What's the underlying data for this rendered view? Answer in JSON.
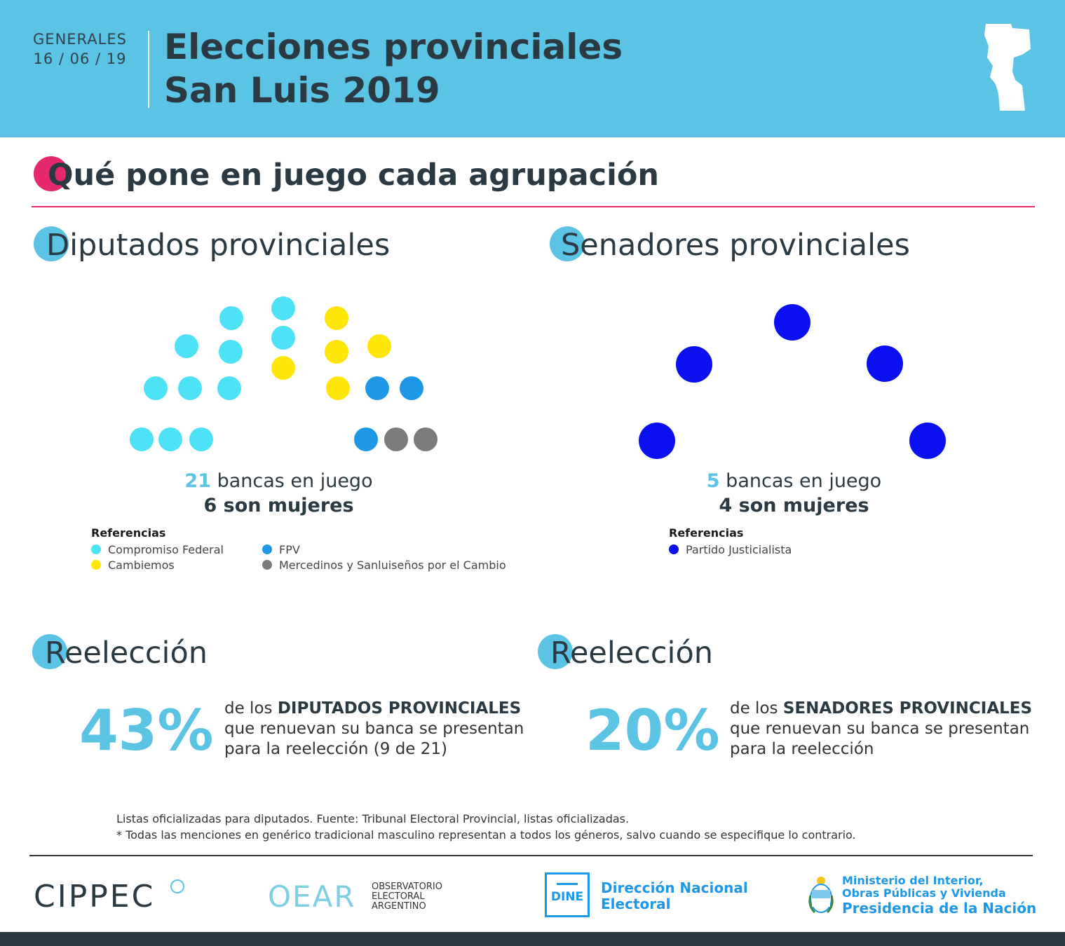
{
  "header": {
    "label": "GENERALES",
    "date": "16 / 06 / 19",
    "title_line1": "Elecciones provinciales",
    "title_line2": "San Luis 2019"
  },
  "main_title": "Qué pone en juego cada agrupación",
  "diputados": {
    "title": "Diputados provinciales",
    "seats": 21,
    "count_num": "21",
    "count_text": " bancas en juego",
    "women": "6 son mujeres",
    "ref_title": "Referencias",
    "legend": [
      {
        "label": "Compromiso Federal",
        "color": "#4ee2f7",
        "seats": 11
      },
      {
        "label": "Cambiemos",
        "color": "#ffe60a",
        "seats": 5
      },
      {
        "label": "FPV",
        "color": "#1e98e6",
        "seats": 3
      },
      {
        "label": "Mercedinos y Sanluiseños por el Cambio",
        "color": "#7b7b7d",
        "seats": 2
      }
    ]
  },
  "senadores": {
    "title": "Senadores provinciales",
    "seats": 5,
    "count_num": "5",
    "count_text": " bancas en juego",
    "women": "4 son mujeres",
    "ref_title": "Referencias",
    "legend": [
      {
        "label": "Partido Justicialista",
        "color": "#0b10f0",
        "seats": 5
      }
    ]
  },
  "reeleccion_diputados": {
    "title": "Reelección",
    "pct": "43%",
    "text_pre": "de los ",
    "text_bold": "DIPUTADOS PROVINCIALES",
    "text_line2": "que renuevan su banca se presentan",
    "text_line3": "para la reelección (9 de 21)"
  },
  "reeleccion_senadores": {
    "title": "Reelección",
    "pct": "20%",
    "text_pre": "de los ",
    "text_bold": "SENADORES PROVINCIALES",
    "text_line2": "que renuevan su banca se presentan",
    "text_line3": "para la reelección"
  },
  "notes": {
    "line1": "Listas oficializadas para diputados. Fuente: Tribunal Electoral Provincial, listas oficializadas.",
    "line2": "* Todas las menciones en genérico tradicional masculino representan a todos los géneros, salvo cuando se especifique lo contrario."
  },
  "footer": {
    "cippec": "CIPPEC",
    "oear_mark": "OEAR",
    "oear_line1": "OBSERVATORIO",
    "oear_line2": "ELECTORAL",
    "oear_line3": "ARGENTINO",
    "dine_mark": "DINE",
    "dine_line1": "Dirección Nacional",
    "dine_line2": "Electoral",
    "min_line1": "Ministerio del Interior,",
    "min_line2": "Obras Públicas y Vivienda",
    "min_line3": "Presidencia de la Nación"
  }
}
